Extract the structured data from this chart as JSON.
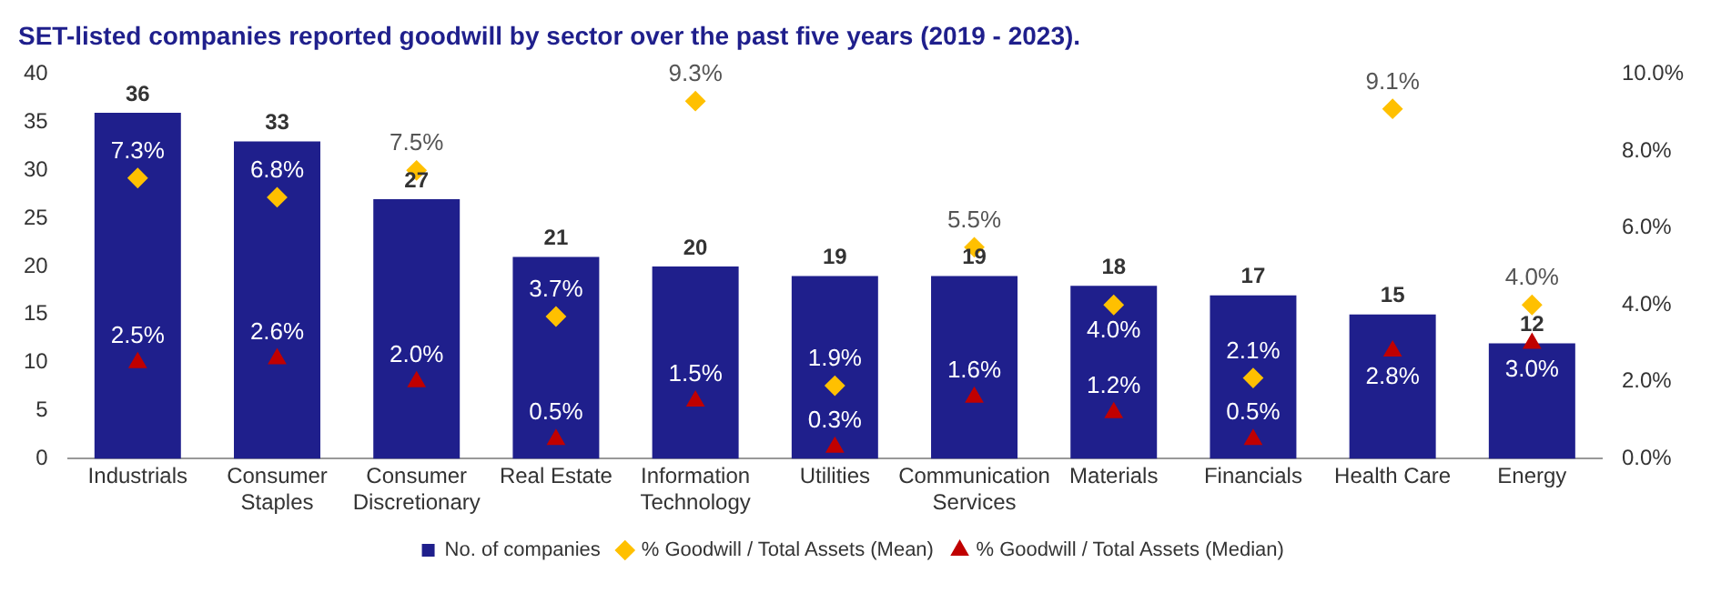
{
  "chart_data": {
    "type": "bar",
    "title": "SET-listed companies reported goodwill by sector over the past five years (2019 - 2023).",
    "categories": [
      "Industrials",
      "Consumer\nStaples",
      "Consumer\nDiscretionary",
      "Real Estate",
      "Information\nTechnology",
      "Utilities",
      "Communication\nServices",
      "Materials",
      "Financials",
      "Health Care",
      "Energy"
    ],
    "series": [
      {
        "name": "No. of companies",
        "color": "#1f1f8c",
        "values": [
          36,
          33,
          27,
          21,
          20,
          19,
          19,
          18,
          17,
          15,
          12
        ],
        "value_labels": [
          "36",
          "33",
          "27",
          "21",
          "20",
          "19",
          "19",
          "18",
          "17",
          "15",
          "12"
        ]
      },
      {
        "name": "% Goodwill / Total Assets (Mean)",
        "type": "scatter",
        "marker": "diamond",
        "axis": "y2",
        "color": "#ffc000",
        "values": [
          7.3,
          6.8,
          7.5,
          3.7,
          9.3,
          1.9,
          5.5,
          4.0,
          2.1,
          9.1,
          4.0
        ],
        "value_labels": [
          "7.3%",
          "6.8%",
          "7.5%",
          "3.7%",
          "9.3%",
          "1.9%",
          "5.5%",
          "4.0%",
          "2.1%",
          "9.1%",
          "4.0%"
        ]
      },
      {
        "name": "% Goodwill / Total Assets (Median)",
        "type": "scatter",
        "marker": "triangle",
        "axis": "y2",
        "color": "#c00000",
        "values": [
          2.5,
          2.6,
          2.0,
          0.5,
          1.5,
          0.3,
          1.6,
          1.2,
          0.5,
          2.8,
          3.0
        ],
        "value_labels": [
          "2.5%",
          "2.6%",
          "2.0%",
          "0.5%",
          "1.5%",
          "0.3%",
          "1.6%",
          "1.2%",
          "0.5%",
          "2.8%",
          "3.0%"
        ]
      }
    ],
    "ylim": [
      0,
      40
    ],
    "yticks": [
      0,
      5,
      10,
      15,
      20,
      25,
      30,
      35,
      40
    ],
    "y2lim": [
      0,
      10
    ],
    "y2ticks": [
      {
        "value": 0,
        "label": "0.0%"
      },
      {
        "value": 2,
        "label": "2.0%"
      },
      {
        "value": 4,
        "label": "4.0%"
      },
      {
        "value": 6,
        "label": "6.0%"
      },
      {
        "value": 8,
        "label": "8.0%"
      },
      {
        "value": 10,
        "label": "10.0%"
      }
    ],
    "grid": false,
    "legend": "bottom"
  }
}
